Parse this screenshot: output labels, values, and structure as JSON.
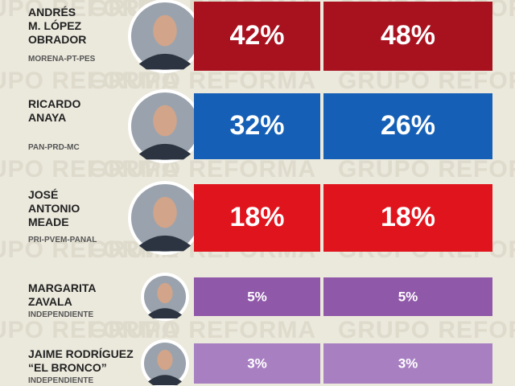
{
  "watermark": "GRUPO REFORMA",
  "candidates": [
    {
      "name": [
        "ANDRÉS",
        "M. LÓPEZ",
        "OBRADOR"
      ],
      "party": "MORENA-PT-PES",
      "values": [
        "42%",
        "48%"
      ]
    },
    {
      "name": [
        "RICARDO",
        "ANAYA"
      ],
      "party": "PAN-PRD-MC",
      "values": [
        "32%",
        "26%"
      ]
    },
    {
      "name": [
        "JOSÉ",
        "ANTONIO",
        "MEADE"
      ],
      "party": "PRI-PVEM-PANAL",
      "values": [
        "18%",
        "18%"
      ]
    },
    {
      "name": [
        "MARGARITA",
        "ZAVALA"
      ],
      "party": "INDEPENDIENTE",
      "values": [
        "5%",
        "5%"
      ]
    },
    {
      "name": [
        "JAIME RODRÍGUEZ",
        "“EL BRONCO”"
      ],
      "party": "INDEPENDIENTE",
      "values": [
        "3%",
        "3%"
      ]
    }
  ]
}
